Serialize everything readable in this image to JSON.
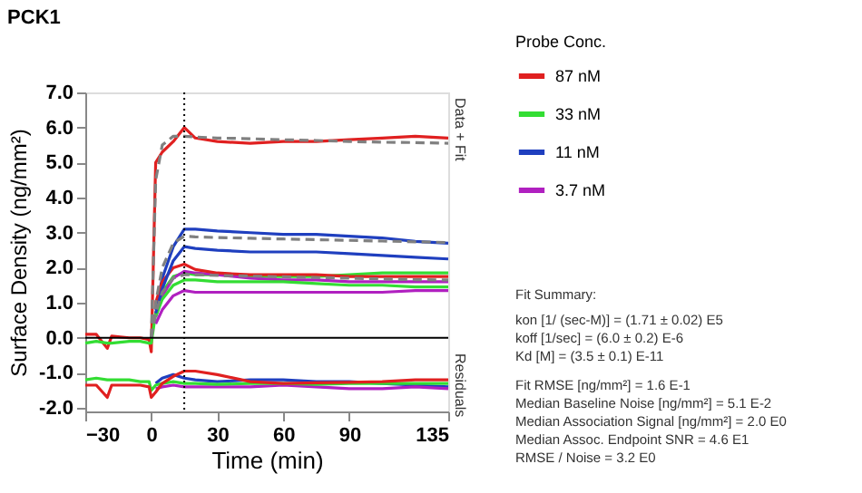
{
  "chart_data": {
    "type": "line",
    "title": "PCK1",
    "xlabel": "Time (min)",
    "ylabel": "Surface Density (ng/mm²)",
    "legend_title": "Probe Conc.",
    "x": [
      -30,
      -25,
      -20,
      -18,
      -10,
      -5,
      -1,
      0,
      2,
      5,
      10,
      15,
      20,
      30,
      45,
      60,
      75,
      90,
      105,
      120,
      135
    ],
    "xlim": [
      -30,
      135
    ],
    "xticks": [
      -30,
      0,
      30,
      60,
      90,
      135
    ],
    "ylim": [
      -2.1,
      7.0
    ],
    "yticks": [
      {
        "value": -2,
        "label": "-2.0"
      },
      {
        "value": -1,
        "label": "-1.0"
      },
      {
        "value": 0,
        "label": "0.0"
      },
      {
        "value": 1,
        "label": "1.0"
      },
      {
        "value": 2,
        "label": "2.0"
      },
      {
        "value": 3,
        "label": "3.0"
      },
      {
        "value": 4,
        "label": "4.0"
      },
      {
        "value": 5,
        "label": "5.0"
      },
      {
        "value": 6,
        "label": "6.0"
      },
      {
        "value": 7,
        "label": "7.0"
      }
    ],
    "grid": false,
    "legend": "top right",
    "marker": "none",
    "line_style": "solid",
    "series": [
      {
        "name": "87 nM",
        "color": "#e02020",
        "values": [
          0.1,
          0.1,
          -0.3,
          0.05,
          0.0,
          0.0,
          -0.05,
          -0.4,
          5.0,
          5.3,
          5.6,
          6.0,
          5.7,
          5.6,
          5.55,
          5.6,
          5.6,
          5.65,
          5.7,
          5.75,
          5.7
        ]
      },
      {
        "name": "33 nM",
        "color": "#33dd33",
        "values": [
          -0.15,
          -0.1,
          -0.15,
          -0.15,
          -0.1,
          -0.1,
          -0.15,
          -0.15,
          0.7,
          1.3,
          1.75,
          1.85,
          1.8,
          1.8,
          1.75,
          1.75,
          1.75,
          1.8,
          1.85,
          1.85,
          1.85
        ]
      },
      {
        "name": "11 nM",
        "color": "#1f3fbf",
        "values": [
          null,
          null,
          null,
          null,
          null,
          null,
          null,
          null,
          0.8,
          1.7,
          2.6,
          3.1,
          3.1,
          3.05,
          3.0,
          2.95,
          2.95,
          2.9,
          2.85,
          2.75,
          2.7
        ]
      },
      {
        "name": "3.7 nM",
        "color": "#b020c0",
        "values": [
          null,
          null,
          null,
          null,
          null,
          null,
          null,
          null,
          0.6,
          1.2,
          1.7,
          1.9,
          1.85,
          1.8,
          1.7,
          1.65,
          1.65,
          1.6,
          1.6,
          1.6,
          1.6
        ]
      },
      {
        "color": "#e02020",
        "values": [
          null,
          null,
          null,
          null,
          null,
          null,
          null,
          null,
          1.0,
          1.6,
          2.0,
          2.1,
          1.95,
          1.85,
          1.8,
          1.8,
          1.8,
          1.75,
          1.75,
          1.75,
          1.75
        ]
      },
      {
        "color": "#33dd33",
        "values": [
          null,
          null,
          null,
          null,
          null,
          null,
          null,
          null,
          0.6,
          1.1,
          1.5,
          1.65,
          1.65,
          1.6,
          1.6,
          1.6,
          1.55,
          1.5,
          1.5,
          1.45,
          1.45
        ]
      },
      {
        "color": "#1f3fbf",
        "values": [
          null,
          null,
          null,
          null,
          null,
          null,
          null,
          null,
          0.7,
          1.4,
          2.2,
          2.6,
          2.55,
          2.5,
          2.45,
          2.45,
          2.45,
          2.4,
          2.35,
          2.3,
          2.25
        ]
      },
      {
        "color": "#b020c0",
        "values": [
          null,
          null,
          null,
          null,
          null,
          null,
          null,
          null,
          0.4,
          0.8,
          1.2,
          1.35,
          1.3,
          1.3,
          1.3,
          1.3,
          1.3,
          1.3,
          1.3,
          1.35,
          1.35
        ]
      },
      {
        "color": "#808080",
        "line_style": "dashed",
        "values": [
          null,
          null,
          null,
          null,
          null,
          null,
          null,
          0.0,
          4.5,
          5.5,
          5.75,
          5.75,
          5.73,
          5.7,
          5.68,
          5.65,
          5.63,
          5.6,
          5.58,
          5.57,
          5.55
        ]
      },
      {
        "color": "#808080",
        "line_style": "dashed",
        "values": [
          null,
          null,
          null,
          null,
          null,
          null,
          null,
          0.0,
          1.0,
          2.0,
          2.7,
          2.9,
          2.88,
          2.86,
          2.84,
          2.82,
          2.8,
          2.78,
          2.76,
          2.74,
          2.72
        ]
      },
      {
        "color": "#808080",
        "line_style": "dashed",
        "values": [
          null,
          null,
          null,
          null,
          null,
          null,
          null,
          0.0,
          0.7,
          1.3,
          1.7,
          1.8,
          1.8,
          1.78,
          1.76,
          1.74,
          1.72,
          1.7,
          1.68,
          1.66,
          1.65
        ]
      },
      {
        "color": "#1f3fbf",
        "values": [
          null,
          null,
          null,
          null,
          null,
          null,
          null,
          null,
          -1.3,
          -1.15,
          -1.05,
          -1.15,
          -1.2,
          -1.25,
          -1.2,
          -1.2,
          -1.25,
          -1.25,
          -1.3,
          -1.35,
          -1.4
        ]
      },
      {
        "color": "#b020c0",
        "values": [
          null,
          null,
          null,
          null,
          null,
          null,
          null,
          null,
          -1.45,
          -1.4,
          -1.35,
          -1.4,
          -1.4,
          -1.4,
          -1.4,
          -1.35,
          -1.4,
          -1.45,
          -1.45,
          -1.4,
          -1.45
        ]
      },
      {
        "color": "#33dd33",
        "values": [
          -1.2,
          -1.15,
          -1.2,
          -1.2,
          -1.2,
          -1.25,
          -1.25,
          -1.5,
          -1.35,
          -1.3,
          -1.25,
          -1.3,
          -1.3,
          -1.33,
          -1.3,
          -1.3,
          -1.33,
          -1.3,
          -1.3,
          -1.3,
          -1.3
        ]
      },
      {
        "color": "#e02020",
        "values": [
          -1.35,
          -1.35,
          -1.7,
          -1.35,
          -1.35,
          -1.35,
          -1.4,
          -1.7,
          -1.55,
          -1.3,
          -1.1,
          -0.95,
          -0.95,
          -1.05,
          -1.25,
          -1.3,
          -1.28,
          -1.27,
          -1.25,
          -1.2,
          -1.2
        ]
      }
    ],
    "ref_lines": [
      {
        "axis": "y",
        "value": 0,
        "color": "#000000",
        "line_style": "solid"
      },
      {
        "axis": "x",
        "value": 15,
        "color": "#000000",
        "line_style": "dotted"
      }
    ],
    "annotations": [
      "Data + Fit",
      "Residuals",
      "Fit Summary:",
      "kon  [1/ (sec-M)]  =   (1.71 ± 0.02) E5",
      "koff  [1/sec]  =   (6.0 ± 0.2) E-6",
      "Kd  [M]  =   (3.5 ± 0.1) E-11",
      "Fit RMSE [ng/mm²]  =   1.6 E-1",
      "Median Baseline Noise [ng/mm²]  =   5.1 E-2",
      "Median Association Signal [ng/mm²]  =   2.0 E0",
      "Median Assoc. Endpoint SNR  =   4.6 E1",
      "RMSE / Noise  =   3.2 E0"
    ]
  }
}
